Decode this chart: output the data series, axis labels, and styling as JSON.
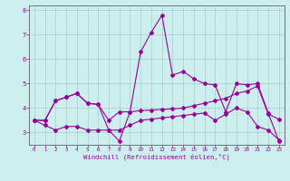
{
  "xlabel": "Windchill (Refroidissement éolien,°C)",
  "x": [
    0,
    1,
    2,
    3,
    4,
    5,
    6,
    7,
    8,
    9,
    10,
    11,
    12,
    13,
    14,
    15,
    16,
    17,
    18,
    19,
    20,
    21,
    22,
    23
  ],
  "line1": [
    3.5,
    3.5,
    4.3,
    4.45,
    4.6,
    4.2,
    4.15,
    3.5,
    3.85,
    3.85,
    3.9,
    3.92,
    3.95,
    3.97,
    4.0,
    4.1,
    4.2,
    4.3,
    4.4,
    4.6,
    4.7,
    4.9,
    3.75,
    3.55
  ],
  "line2": [
    3.5,
    3.5,
    4.3,
    4.45,
    4.6,
    4.2,
    4.15,
    3.1,
    2.65,
    3.85,
    6.3,
    7.1,
    7.8,
    5.35,
    5.5,
    5.2,
    5.0,
    4.95,
    3.85,
    5.0,
    4.95,
    5.0,
    3.8,
    2.65
  ],
  "line3": [
    3.5,
    3.3,
    3.1,
    3.25,
    3.25,
    3.1,
    3.1,
    3.1,
    3.1,
    3.3,
    3.5,
    3.55,
    3.6,
    3.65,
    3.7,
    3.75,
    3.8,
    3.5,
    3.75,
    4.0,
    3.85,
    3.25,
    3.1,
    2.7
  ],
  "line_color": "#990099",
  "bg_color": "#cceeee",
  "grid_color": "#aacccc",
  "ylim": [
    2.5,
    8.2
  ],
  "yticks": [
    3,
    4,
    5,
    6,
    7,
    8
  ],
  "xticks": [
    0,
    1,
    2,
    3,
    4,
    5,
    6,
    7,
    8,
    9,
    10,
    11,
    12,
    13,
    14,
    15,
    16,
    17,
    18,
    19,
    20,
    21,
    22,
    23
  ]
}
